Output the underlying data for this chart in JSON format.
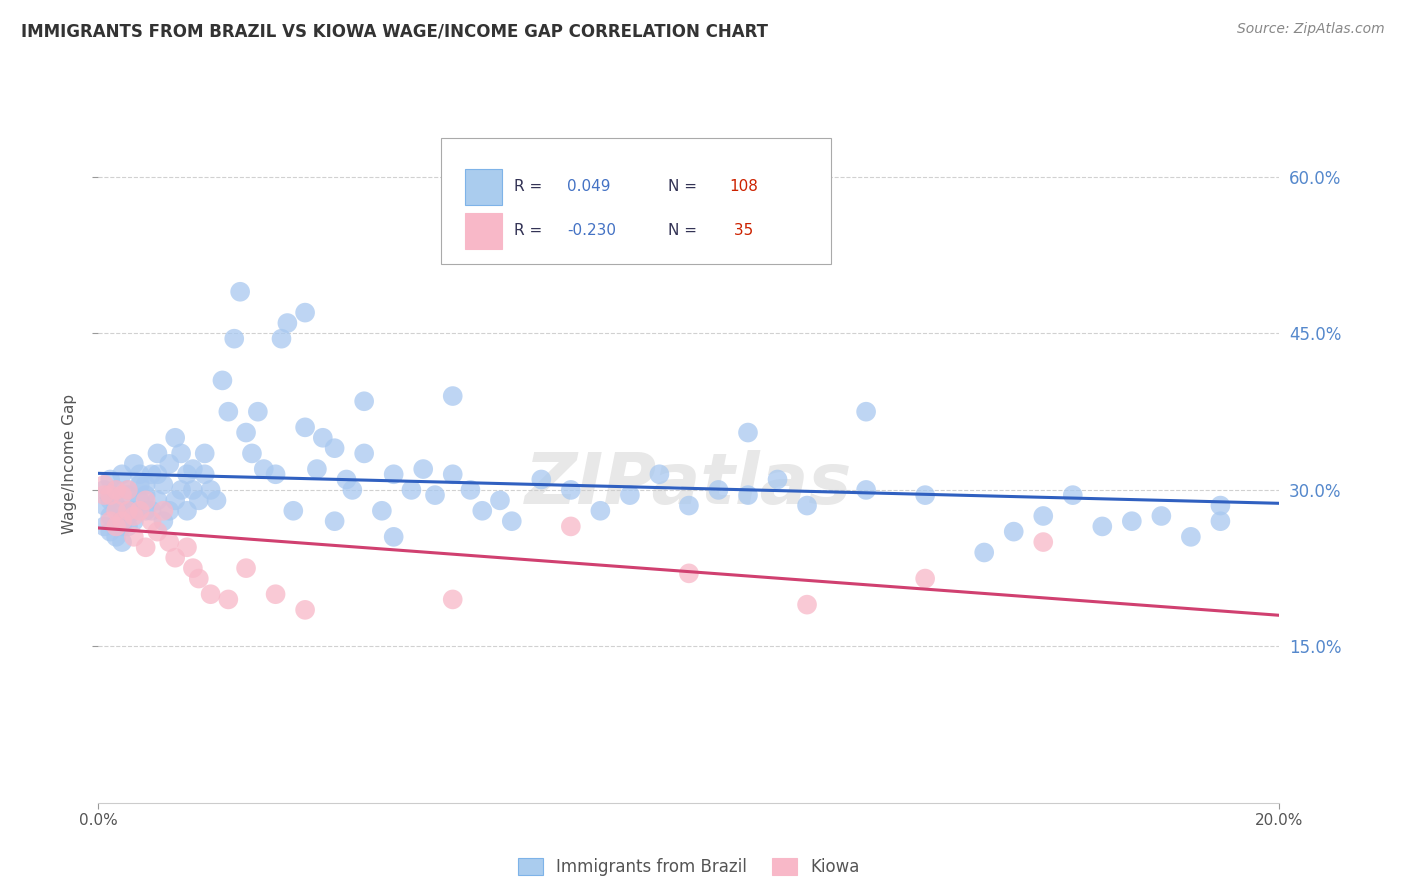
{
  "title": "IMMIGRANTS FROM BRAZIL VS KIOWA WAGE/INCOME GAP CORRELATION CHART",
  "source": "Source: ZipAtlas.com",
  "ylabel": "Wage/Income Gap",
  "xlim": [
    0.0,
    0.2
  ],
  "ylim": [
    0.0,
    0.65
  ],
  "yticks": [
    0.15,
    0.3,
    0.45,
    0.6
  ],
  "ytick_labels": [
    "15.0%",
    "30.0%",
    "45.0%",
    "60.0%"
  ],
  "xticks": [
    0.0,
    0.2
  ],
  "xtick_labels": [
    "0.0%",
    "20.0%"
  ],
  "grid_color": "#cccccc",
  "background_color": "#ffffff",
  "watermark": "ZIPatlas",
  "brazil_color": "#a8c8f0",
  "brazil_trend_color": "#3060c0",
  "kiowa_color": "#f8b8c8",
  "kiowa_trend_color": "#d04070",
  "legend_R_color": "#4472c4",
  "legend_N_color": "#cc2200",
  "legend_text_dark": "#333355",
  "brazil_x": [
    0.001,
    0.001,
    0.001,
    0.002,
    0.002,
    0.002,
    0.002,
    0.003,
    0.003,
    0.003,
    0.004,
    0.004,
    0.004,
    0.004,
    0.005,
    0.005,
    0.005,
    0.005,
    0.005,
    0.006,
    0.006,
    0.006,
    0.007,
    0.007,
    0.007,
    0.008,
    0.008,
    0.008,
    0.009,
    0.009,
    0.01,
    0.01,
    0.01,
    0.011,
    0.011,
    0.012,
    0.012,
    0.013,
    0.013,
    0.014,
    0.014,
    0.015,
    0.015,
    0.016,
    0.016,
    0.017,
    0.018,
    0.018,
    0.019,
    0.02,
    0.021,
    0.022,
    0.023,
    0.024,
    0.025,
    0.026,
    0.027,
    0.028,
    0.03,
    0.031,
    0.032,
    0.033,
    0.035,
    0.037,
    0.038,
    0.04,
    0.042,
    0.043,
    0.045,
    0.048,
    0.05,
    0.053,
    0.055,
    0.057,
    0.06,
    0.063,
    0.065,
    0.068,
    0.07,
    0.075,
    0.08,
    0.085,
    0.09,
    0.095,
    0.1,
    0.105,
    0.11,
    0.115,
    0.12,
    0.13,
    0.14,
    0.15,
    0.155,
    0.16,
    0.165,
    0.17,
    0.175,
    0.18,
    0.185,
    0.19,
    0.11,
    0.13,
    0.05,
    0.06,
    0.04,
    0.035,
    0.045,
    0.19
  ],
  "brazil_y": [
    0.285,
    0.3,
    0.265,
    0.275,
    0.29,
    0.31,
    0.26,
    0.255,
    0.285,
    0.3,
    0.265,
    0.28,
    0.315,
    0.25,
    0.265,
    0.275,
    0.295,
    0.3,
    0.28,
    0.27,
    0.325,
    0.28,
    0.29,
    0.305,
    0.315,
    0.28,
    0.295,
    0.305,
    0.28,
    0.315,
    0.29,
    0.315,
    0.335,
    0.27,
    0.305,
    0.28,
    0.325,
    0.29,
    0.35,
    0.3,
    0.335,
    0.28,
    0.315,
    0.3,
    0.32,
    0.29,
    0.315,
    0.335,
    0.3,
    0.29,
    0.405,
    0.375,
    0.445,
    0.49,
    0.355,
    0.335,
    0.375,
    0.32,
    0.315,
    0.445,
    0.46,
    0.28,
    0.36,
    0.32,
    0.35,
    0.34,
    0.31,
    0.3,
    0.335,
    0.28,
    0.315,
    0.3,
    0.32,
    0.295,
    0.315,
    0.3,
    0.28,
    0.29,
    0.27,
    0.31,
    0.3,
    0.28,
    0.295,
    0.315,
    0.285,
    0.3,
    0.295,
    0.31,
    0.285,
    0.3,
    0.295,
    0.24,
    0.26,
    0.275,
    0.295,
    0.265,
    0.27,
    0.275,
    0.255,
    0.27,
    0.355,
    0.375,
    0.255,
    0.39,
    0.27,
    0.47,
    0.385,
    0.285
  ],
  "kiowa_x": [
    0.001,
    0.001,
    0.002,
    0.002,
    0.003,
    0.003,
    0.003,
    0.004,
    0.004,
    0.005,
    0.005,
    0.006,
    0.006,
    0.007,
    0.008,
    0.008,
    0.009,
    0.01,
    0.011,
    0.012,
    0.013,
    0.015,
    0.016,
    0.017,
    0.019,
    0.022,
    0.025,
    0.03,
    0.035,
    0.06,
    0.08,
    0.1,
    0.12,
    0.14,
    0.16
  ],
  "kiowa_y": [
    0.295,
    0.305,
    0.27,
    0.295,
    0.28,
    0.3,
    0.265,
    0.27,
    0.295,
    0.28,
    0.3,
    0.255,
    0.275,
    0.28,
    0.29,
    0.245,
    0.27,
    0.26,
    0.28,
    0.25,
    0.235,
    0.245,
    0.225,
    0.215,
    0.2,
    0.195,
    0.225,
    0.2,
    0.185,
    0.195,
    0.265,
    0.22,
    0.19,
    0.215,
    0.25
  ]
}
